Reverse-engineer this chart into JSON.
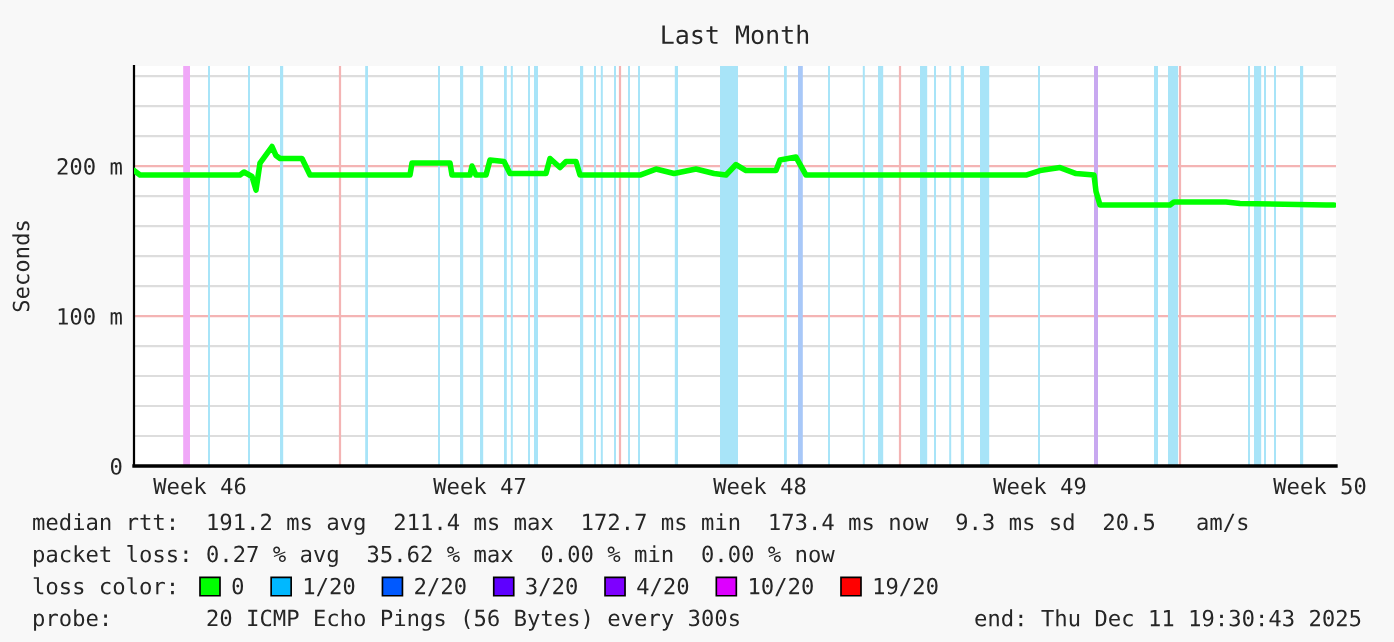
{
  "chart_data": {
    "type": "line",
    "title": "Last Month",
    "ylabel": "Seconds",
    "legend_title": "loss color:",
    "legend": "bottom",
    "grid": "y",
    "x": [
      "2025-11-11T20:24",
      "2025-11-12T00:00",
      "2025-11-14T12:00",
      "2025-11-14T14:24",
      "2025-11-14T19:12",
      "2025-11-14T21:36",
      "2025-11-15T00:00",
      "2025-11-15T07:12",
      "2025-11-15T09:36",
      "2025-11-15T12:00",
      "2025-11-16T01:12",
      "2025-11-16T06:00",
      "2025-11-18T18:00",
      "2025-11-18T19:12",
      "2025-11-19T18:00",
      "2025-11-19T19:12",
      "2025-11-20T06:00",
      "2025-11-20T07:12",
      "2025-11-20T09:36",
      "2025-11-20T15:36",
      "2025-11-20T18:00",
      "2025-11-21T02:24",
      "2025-11-21T06:00",
      "2025-11-22T03:36",
      "2025-11-22T06:00",
      "2025-11-22T12:00",
      "2025-11-22T15:36",
      "2025-11-22T21:36",
      "2025-11-23T00:00",
      "2025-11-24T12:00",
      "2025-11-24T21:36",
      "2025-11-25T08:24",
      "2025-11-25T21:36",
      "2025-11-26T08:24",
      "2025-11-26T15:36",
      "2025-11-26T21:36",
      "2025-11-27T03:36",
      "2025-11-27T21:36",
      "2025-11-28T00:00",
      "2025-11-28T09:36",
      "2025-11-28T15:36",
      "2025-12-04T03:36",
      "2025-12-04T12:00",
      "2025-12-05T00:00",
      "2025-12-05T09:36",
      "2025-12-05T20:24",
      "2025-12-05T21:36",
      "2025-12-06T00:00",
      "2025-12-07T18:00",
      "2025-12-07T20:24",
      "2025-12-09T03:36",
      "2025-12-09T12:00",
      "2025-12-11T15:36",
      "2025-12-11T20:24"
    ],
    "series": [
      {
        "name": "0",
        "color": "#00ff00",
        "values": [
          197,
          194,
          194,
          196,
          193,
          184,
          202,
          213,
          207,
          205,
          205,
          194,
          194,
          202,
          202,
          194,
          194,
          200,
          194,
          194,
          204,
          203,
          195,
          195,
          205,
          199,
          203,
          203,
          194,
          194,
          198,
          195,
          198,
          195,
          194,
          201,
          197,
          197,
          204,
          206,
          194,
          194,
          197,
          199,
          195,
          194,
          183,
          174,
          174,
          176,
          176,
          175,
          174,
          174
        ]
      },
      {
        "name": "1/20",
        "color": "#00b8ff",
        "values": [
          null,
          null,
          null,
          null,
          null,
          null,
          null,
          null,
          null,
          null,
          null,
          null,
          null,
          null,
          null,
          null,
          null,
          null,
          null,
          null,
          null,
          null,
          null,
          null,
          null,
          null,
          null,
          null,
          null,
          null,
          null,
          null,
          null,
          null,
          null,
          null,
          null,
          null,
          null,
          null,
          null,
          null,
          null,
          null,
          null,
          null,
          null,
          null,
          null,
          null,
          null,
          null,
          null,
          null
        ]
      },
      {
        "name": "2/20",
        "color": "#0059ff",
        "values": [
          null,
          null,
          null,
          null,
          null,
          null,
          null,
          null,
          null,
          null,
          null,
          null,
          null,
          null,
          null,
          null,
          null,
          null,
          null,
          null,
          null,
          null,
          null,
          null,
          null,
          null,
          null,
          null,
          null,
          null,
          null,
          null,
          null,
          null,
          null,
          null,
          null,
          null,
          null,
          null,
          null,
          null,
          null,
          null,
          null,
          null,
          null,
          null,
          null,
          null,
          null,
          null,
          null,
          null
        ]
      },
      {
        "name": "3/20",
        "color": "#5e00ff",
        "values": [
          null,
          null,
          null,
          null,
          null,
          null,
          null,
          null,
          null,
          null,
          null,
          null,
          null,
          null,
          null,
          null,
          null,
          null,
          null,
          null,
          null,
          null,
          null,
          null,
          null,
          null,
          null,
          null,
          null,
          null,
          null,
          null,
          null,
          null,
          null,
          null,
          null,
          null,
          null,
          null,
          null,
          null,
          null,
          null,
          null,
          null,
          null,
          null,
          null,
          null,
          null,
          null,
          null,
          null
        ]
      },
      {
        "name": "4/20",
        "color": "#7e00ff",
        "values": [
          null,
          null,
          null,
          null,
          null,
          null,
          null,
          null,
          null,
          null,
          null,
          null,
          null,
          null,
          null,
          null,
          null,
          null,
          null,
          null,
          null,
          null,
          null,
          null,
          null,
          null,
          null,
          null,
          null,
          null,
          null,
          null,
          null,
          null,
          null,
          null,
          null,
          null,
          null,
          null,
          null,
          null,
          null,
          null,
          null,
          null,
          null,
          null,
          null,
          null,
          null,
          null,
          null,
          null
        ]
      },
      {
        "name": "10/20",
        "color": "#dd00ff",
        "values": [
          null,
          null,
          null,
          null,
          null,
          null,
          null,
          null,
          null,
          null,
          null,
          null,
          null,
          null,
          null,
          null,
          null,
          null,
          null,
          null,
          null,
          null,
          null,
          null,
          null,
          null,
          null,
          null,
          null,
          null,
          null,
          null,
          null,
          null,
          null,
          null,
          null,
          null,
          null,
          null,
          null,
          null,
          null,
          null,
          null,
          null,
          null,
          null,
          null,
          null,
          null,
          null,
          null,
          null
        ]
      },
      {
        "name": "19/20",
        "color": "#ff0000",
        "values": [
          null,
          null,
          null,
          null,
          null,
          null,
          null,
          null,
          null,
          null,
          null,
          null,
          null,
          null,
          null,
          null,
          null,
          null,
          null,
          null,
          null,
          null,
          null,
          null,
          null,
          null,
          null,
          null,
          null,
          null,
          null,
          null,
          null,
          null,
          null,
          null,
          null,
          null,
          null,
          null,
          null,
          null,
          null,
          null,
          null,
          null,
          null,
          null,
          null,
          null,
          null,
          null,
          null,
          null
        ]
      }
    ],
    "xlim": [
      "2025-11-11T20:24",
      "2025-12-11T21:36"
    ],
    "xticks": [
      {
        "value": "2025-11-13T12:00",
        "label": "Week 46"
      },
      {
        "value": "2025-11-20T12:00",
        "label": "Week 47"
      },
      {
        "value": "2025-11-27T12:00",
        "label": "Week 48"
      },
      {
        "value": "2025-12-04T12:00",
        "label": "Week 49"
      },
      {
        "value": "2025-12-11T12:00",
        "label": "Week 50"
      }
    ],
    "ylim": [
      0,
      266.7
    ],
    "yticks": [
      0,
      {
        "value": 20,
        "label": null
      },
      {
        "value": 40,
        "label": null
      },
      {
        "value": 60,
        "label": null
      },
      {
        "value": 80,
        "label": null
      },
      {
        "value": 100,
        "label": "100 m"
      },
      {
        "value": 120,
        "label": null
      },
      {
        "value": 140,
        "label": null
      },
      {
        "value": 160,
        "label": null
      },
      {
        "value": 180,
        "label": null
      },
      {
        "value": 200,
        "label": "200 m"
      },
      {
        "value": 220,
        "label": null
      },
      {
        "value": 240,
        "label": null
      },
      {
        "value": 260,
        "label": null
      }
    ],
    "ref_lines": [
      {
        "axis": "x",
        "value": "2025-11-17",
        "color": "#f4b4b4"
      },
      {
        "axis": "x",
        "value": "2025-11-24",
        "color": "#f4b4b4"
      },
      {
        "axis": "x",
        "value": "2025-12-01",
        "color": "#f4b4b4"
      },
      {
        "axis": "x",
        "value": "2025-12-08",
        "color": "#f4b4b4"
      }
    ],
    "bands": [
      {
        "axis": "x",
        "from": "2025-11-13T01:55",
        "to": "2025-11-13T06:00",
        "color": "#f0a8f8"
      },
      {
        "axis": "x",
        "from": "2025-11-13T16:48",
        "to": "2025-11-13T18:00",
        "color": "#a8e4f8"
      },
      {
        "axis": "x",
        "from": "2025-11-14T16:48",
        "to": "2025-11-14T18:00",
        "color": "#a8e4f8"
      },
      {
        "axis": "x",
        "from": "2025-11-15T12:00",
        "to": "2025-11-15T13:55",
        "color": "#a8e4f8"
      },
      {
        "axis": "x",
        "from": "2025-11-17T15:07",
        "to": "2025-11-17T16:48",
        "color": "#a8e4f8"
      },
      {
        "axis": "x",
        "from": "2025-11-19T10:48",
        "to": "2025-11-19T12:00",
        "color": "#a8e4f8"
      },
      {
        "axis": "x",
        "from": "2025-11-20T00:00",
        "to": "2025-11-20T01:55",
        "color": "#a8e4f8"
      },
      {
        "axis": "x",
        "from": "2025-11-20T12:00",
        "to": "2025-11-20T13:55",
        "color": "#a8e4f8"
      },
      {
        "axis": "x",
        "from": "2025-11-21T02:24",
        "to": "2025-11-21T04:05",
        "color": "#a8e4f8"
      },
      {
        "axis": "x",
        "from": "2025-11-21T06:29",
        "to": "2025-11-21T07:41",
        "color": "#a8e4f8"
      },
      {
        "axis": "x",
        "from": "2025-11-21T16:48",
        "to": "2025-11-21T18:00",
        "color": "#a8e4f8"
      },
      {
        "axis": "x",
        "from": "2025-11-21T20:24",
        "to": "2025-11-21T22:48",
        "color": "#a8e4f8"
      },
      {
        "axis": "x",
        "from": "2025-11-23T00:00",
        "to": "2025-11-23T01:55",
        "color": "#a8e4f8"
      },
      {
        "axis": "x",
        "from": "2025-11-23T08:24",
        "to": "2025-11-23T09:36",
        "color": "#a8e4f8"
      },
      {
        "axis": "x",
        "from": "2025-11-23T12:29",
        "to": "2025-11-23T13:41",
        "color": "#a8e4f8"
      },
      {
        "axis": "x",
        "from": "2025-11-23T20:24",
        "to": "2025-11-23T21:36",
        "color": "#a8e4f8"
      },
      {
        "axis": "x",
        "from": "2025-11-24T04:48",
        "to": "2025-11-24T06:00",
        "color": "#a8e4f8"
      },
      {
        "axis": "x",
        "from": "2025-11-24T10:48",
        "to": "2025-11-24T12:00",
        "color": "#a8e4f8"
      },
      {
        "axis": "x",
        "from": "2025-11-25T08:53",
        "to": "2025-11-25T10:48",
        "color": "#a8e4f8"
      },
      {
        "axis": "x",
        "from": "2025-11-26T12:00",
        "to": "2025-11-26T22:48",
        "color": "#a8e4f8"
      },
      {
        "axis": "x",
        "from": "2025-11-28T02:24",
        "to": "2025-11-28T04:05",
        "color": "#a8e4f8"
      },
      {
        "axis": "x",
        "from": "2025-11-28T10:48",
        "to": "2025-11-28T13:41",
        "color": "#a8c8f8"
      },
      {
        "axis": "x",
        "from": "2025-11-29T04:48",
        "to": "2025-11-29T06:00",
        "color": "#a8e4f8"
      },
      {
        "axis": "x",
        "from": "2025-11-30T01:41",
        "to": "2025-11-30T02:53",
        "color": "#a8e4f8"
      },
      {
        "axis": "x",
        "from": "2025-11-30T10:48",
        "to": "2025-11-30T13:55",
        "color": "#a8e4f8"
      },
      {
        "axis": "x",
        "from": "2025-12-01T12:00",
        "to": "2025-12-01T16:19",
        "color": "#a8e4f8"
      },
      {
        "axis": "x",
        "from": "2025-12-01T20:24",
        "to": "2025-12-01T21:36",
        "color": "#a8e4f8"
      },
      {
        "axis": "x",
        "from": "2025-12-02T05:31",
        "to": "2025-12-02T06:43",
        "color": "#a8e4f8"
      },
      {
        "axis": "x",
        "from": "2025-12-02T12:29",
        "to": "2025-12-02T14:24",
        "color": "#a8e4f8"
      },
      {
        "axis": "x",
        "from": "2025-12-03T00:00",
        "to": "2025-12-03T05:31",
        "color": "#a8e4f8"
      },
      {
        "axis": "x",
        "from": "2025-12-04T10:48",
        "to": "2025-12-04T12:00",
        "color": "#a8e4f8"
      },
      {
        "axis": "x",
        "from": "2025-12-05T20:24",
        "to": "2025-12-05T22:48",
        "color": "#c8a8f0"
      },
      {
        "axis": "x",
        "from": "2025-12-07T08:24",
        "to": "2025-12-07T10:48",
        "color": "#a8e4f8"
      },
      {
        "axis": "x",
        "from": "2025-12-07T16:48",
        "to": "2025-12-07T22:48",
        "color": "#a8e4f8"
      },
      {
        "axis": "x",
        "from": "2025-12-09T16:48",
        "to": "2025-12-09T18:00",
        "color": "#a8e4f8"
      },
      {
        "axis": "x",
        "from": "2025-12-09T20:24",
        "to": "2025-12-10T00:43",
        "color": "#a8e4f8"
      },
      {
        "axis": "x",
        "from": "2025-12-10T02:24",
        "to": "2025-12-10T03:36",
        "color": "#a8e4f8"
      },
      {
        "axis": "x",
        "from": "2025-12-10T08:24",
        "to": "2025-12-10T09:36",
        "color": "#a8e4f8"
      },
      {
        "axis": "x",
        "from": "2025-12-11T00:00",
        "to": "2025-12-11T01:55",
        "color": "#a8e4f8"
      }
    ],
    "annotations": [
      "median rtt:  191.2 ms avg  211.4 ms max  172.7 ms min  173.4 ms now  9.3 ms sd  20.5   am/s",
      "packet loss: 0.27 % avg  35.62 % max  0.00 % min  0.00 % now",
      "probe:       20 ICMP Echo Pings (56 Bytes) every 300s",
      "end: Thu Dec 11 19:30:43 2025"
    ]
  }
}
